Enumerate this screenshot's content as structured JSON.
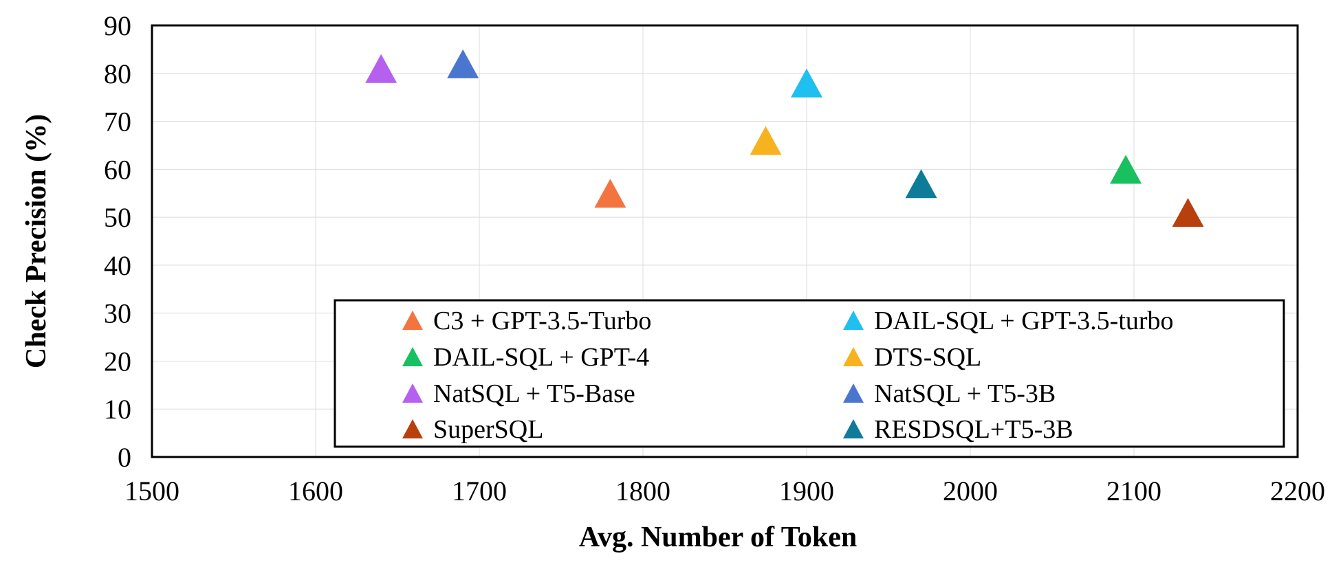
{
  "chart_data": {
    "type": "scatter",
    "title": "",
    "xlabel": "Avg. Number of Token",
    "ylabel": "Check  Precision (%)",
    "xlim": [
      1500,
      2200
    ],
    "ylim": [
      0,
      90
    ],
    "x_ticks": [
      1500,
      1600,
      1700,
      1800,
      1900,
      2000,
      2100,
      2200
    ],
    "y_ticks": [
      0,
      10,
      20,
      30,
      40,
      50,
      60,
      70,
      80,
      90
    ],
    "grid": true,
    "marker": "triangle",
    "legend": {
      "placement": "bottom-right",
      "columns": 2
    },
    "series": [
      {
        "name": "C3 + GPT-3.5-Turbo",
        "color": "#F4743F",
        "x": 1780,
        "y": 55
      },
      {
        "name": "DAIL-SQL + GPT-3.5-turbo",
        "color": "#1FBFF0",
        "x": 1900,
        "y": 78
      },
      {
        "name": "DAIL-SQL + GPT-4",
        "color": "#18C060",
        "x": 2095,
        "y": 60
      },
      {
        "name": "DTS-SQL",
        "color": "#F7B21F",
        "x": 1875,
        "y": 66
      },
      {
        "name": "NatSQL + T5-Base",
        "color": "#B660F0",
        "x": 1640,
        "y": 81
      },
      {
        "name": "NatSQL + T5-3B",
        "color": "#4A76CF",
        "x": 1690,
        "y": 82
      },
      {
        "name": "SuperSQL",
        "color": "#B8400D",
        "x": 2133,
        "y": 51
      },
      {
        "name": "RESDSQL+T5-3B",
        "color": "#0E7C99",
        "x": 1970,
        "y": 57
      }
    ]
  }
}
